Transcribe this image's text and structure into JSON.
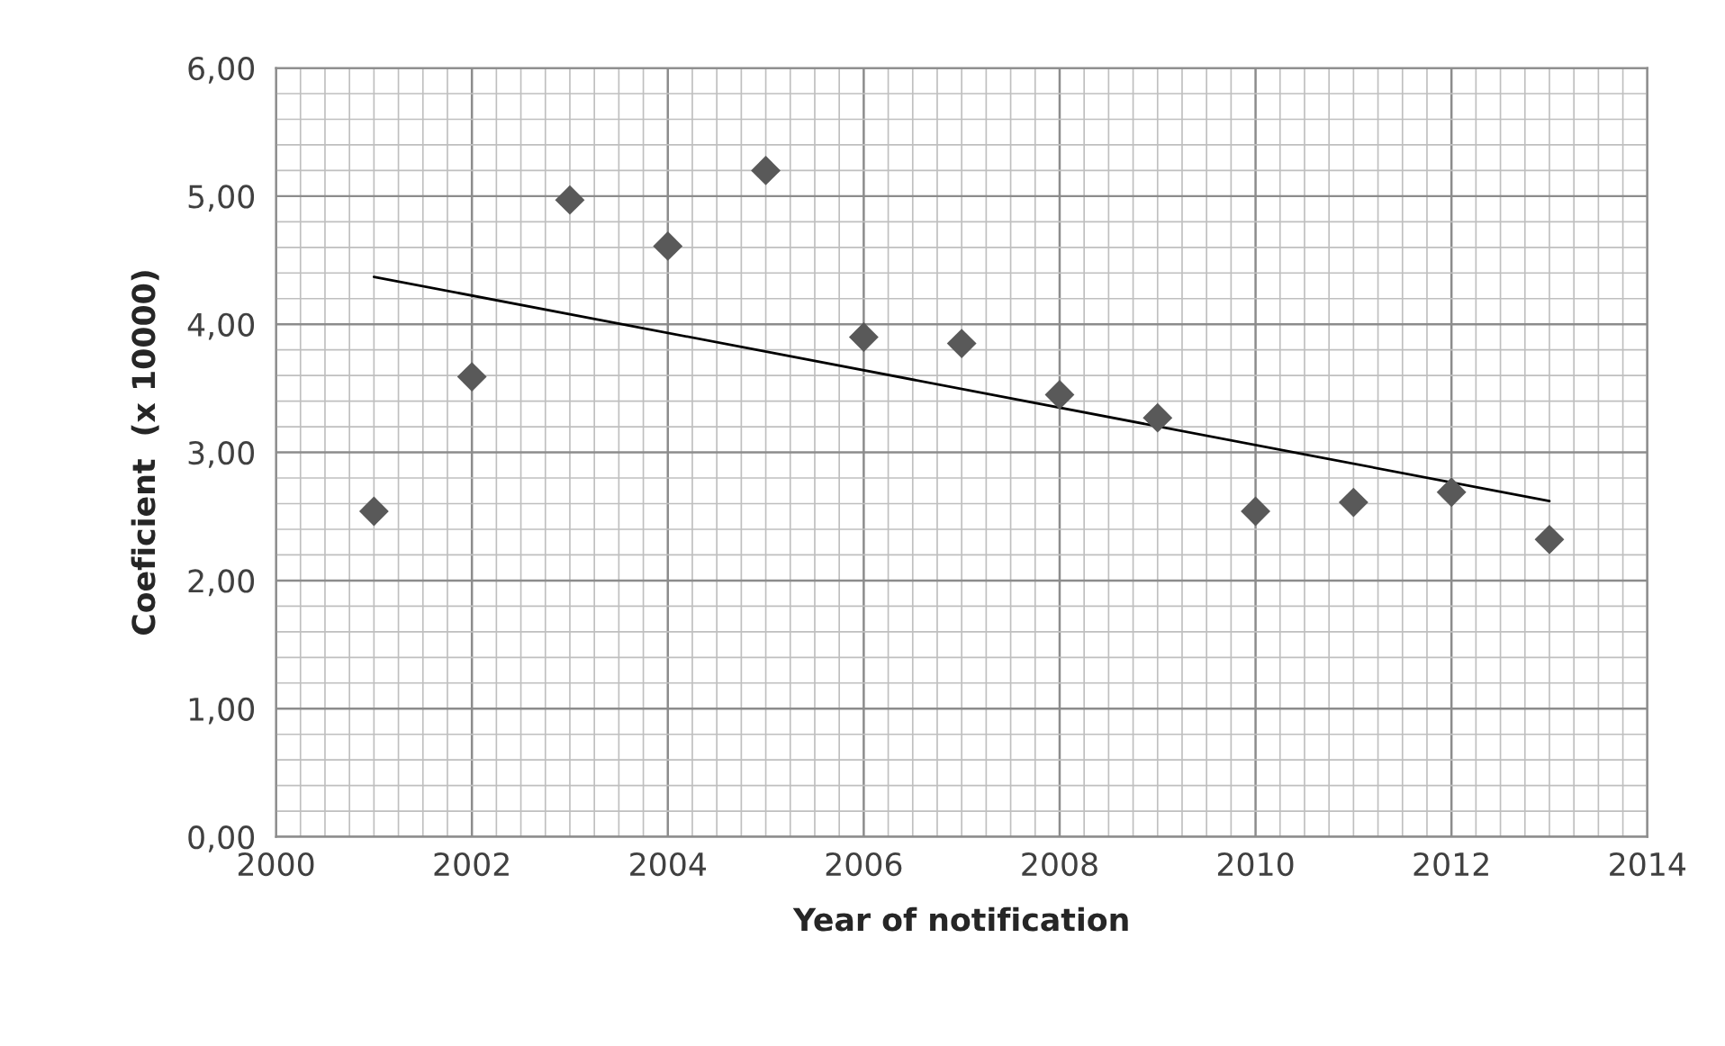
{
  "chart_data": {
    "type": "scatter",
    "xlabel": "Year of notification",
    "ylabel": "Coeficient  (x 10000)",
    "x": [
      2001,
      2002,
      2003,
      2004,
      2005,
      2006,
      2007,
      2008,
      2009,
      2010,
      2011,
      2012,
      2013
    ],
    "series": [
      {
        "color": "#595959",
        "marker": "diamond",
        "values": [
          2.54,
          3.59,
          4.97,
          4.61,
          5.2,
          3.9,
          3.85,
          3.45,
          3.27,
          2.54,
          2.61,
          2.69,
          2.32
        ]
      },
      {
        "type": "line",
        "color": "#000000",
        "line_style": "solid",
        "marker": "none",
        "x": [
          2001,
          2013
        ],
        "values": [
          4.37,
          2.62
        ]
      }
    ],
    "xlim": [
      2000,
      2014
    ],
    "xticks": [
      2000,
      2002,
      2004,
      2006,
      2008,
      2010,
      2012,
      2014
    ],
    "ylim": [
      0,
      6
    ],
    "yticks": [
      {
        "value": 0,
        "label": "0,00"
      },
      {
        "value": 1,
        "label": "1,00"
      },
      {
        "value": 2,
        "label": "2,00"
      },
      {
        "value": 3,
        "label": "3,00"
      },
      {
        "value": 4,
        "label": "4,00"
      },
      {
        "value": 5,
        "label": "5,00"
      },
      {
        "value": 6,
        "label": "6,00"
      }
    ],
    "grid": true,
    "legend": false
  }
}
